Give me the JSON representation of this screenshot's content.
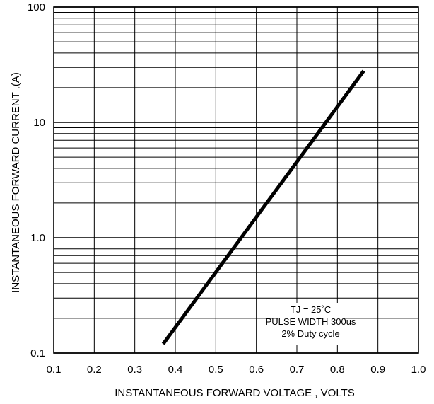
{
  "chart_data": {
    "type": "line",
    "title": "",
    "xlabel": "INSTANTANEOUS FORWARD VOLTAGE , VOLTS",
    "ylabel": "INSTANTANEOUS  FORWARD CURRENT ,(A)",
    "xlim": [
      0.1,
      1.0
    ],
    "ylim": [
      0.1,
      100
    ],
    "yscale": "log",
    "grid": true,
    "x_ticks": [
      0.1,
      0.2,
      0.3,
      0.4,
      0.5,
      0.6,
      0.7,
      0.8,
      0.9,
      1.0
    ],
    "x_tick_labels": [
      "0.1",
      "0.2",
      "0.3",
      "0.4",
      "0.5",
      "0.6",
      "0.7",
      "0.8",
      "0.9",
      "1.0"
    ],
    "y_ticks": [
      0.1,
      1,
      10,
      100
    ],
    "y_tick_labels": [
      "0.1",
      "1.0",
      "10",
      "100"
    ],
    "series": [
      {
        "x": [
          0.37,
          0.865
        ],
        "y": [
          0.12,
          28
        ],
        "color": "#000000"
      }
    ],
    "annotation": {
      "lines": [
        "TJ = 25˚C",
        "PULSE WIDTH 300us",
        "2% Duty cycle"
      ],
      "position": "bottom-right"
    }
  }
}
